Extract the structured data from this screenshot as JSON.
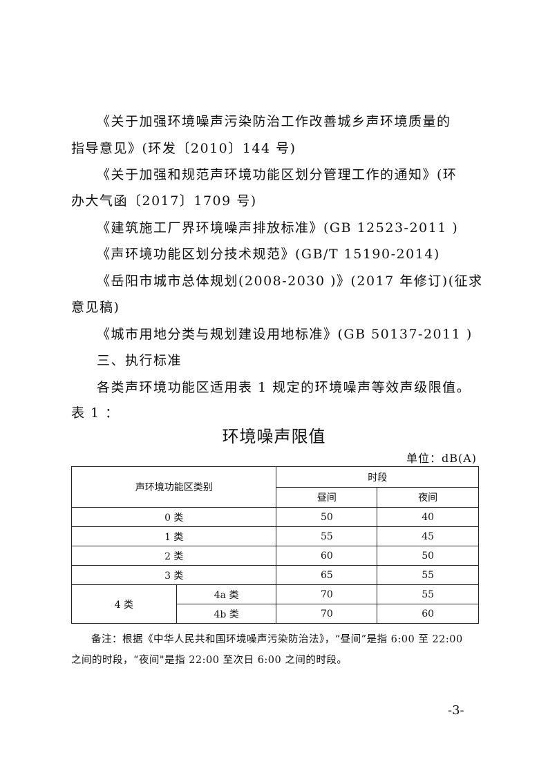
{
  "body": {
    "lines": [
      "《关于加强环境噪声污染防治工作改善城乡声环境质量的",
      "指导意见》(环发〔2010〕144 号)",
      "《关于加强和规范声环境功能区划分管理工作的通知》(环",
      "办大气函〔2017〕1709 号)",
      "《建筑施工厂界环境噪声排放标准》(GB 12523-2011 )",
      "《声环境功能区划分技术规范》(GB/T 15190-2014)",
      "《岳阳市城市总体规划(2008-2030 )》(2017 年修订)(征求",
      "意见稿)",
      "《城市用地分类与规划建设用地标准》(GB 50137-2011 )",
      "三、执行标准",
      "各类声环境功能区适用表 1 规定的环境噪声等效声级限值。",
      "表 1 ："
    ]
  },
  "table": {
    "title": "环境噪声限值",
    "unit": "单位：dB(A)",
    "header": {
      "category": "声环境功能区类别",
      "period": "时段",
      "day": "昼间",
      "night": "夜间"
    },
    "rows": [
      {
        "category": "0 类",
        "day": "50",
        "night": "40"
      },
      {
        "category": "1 类",
        "day": "55",
        "night": "45"
      },
      {
        "category": "2 类",
        "day": "60",
        "night": "50"
      },
      {
        "category": "3 类",
        "day": "65",
        "night": "55"
      }
    ],
    "class4": {
      "category": "4 类",
      "sub": [
        {
          "category": "4a 类",
          "day": "70",
          "night": "55"
        },
        {
          "category": "4b 类",
          "day": "70",
          "night": "60"
        }
      ]
    }
  },
  "note": {
    "line1": "备注：根据《中华人民共和国环境噪声污染防治法》，“昼间”是指 6:00 至 22:00",
    "line2": "之间的时段，“夜间\"是指 22:00 至次日 6:00 之间的时段。"
  },
  "page_number": "-3-"
}
